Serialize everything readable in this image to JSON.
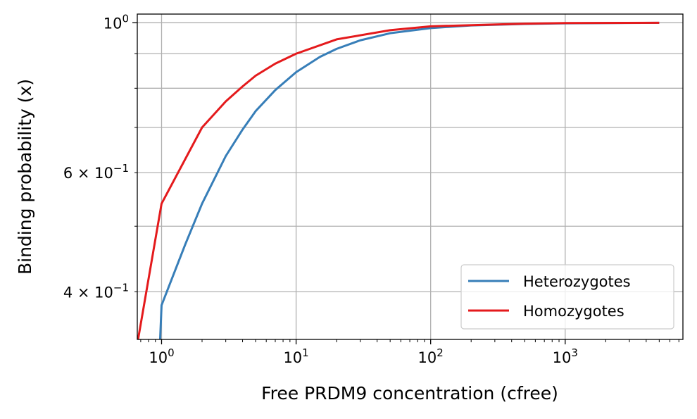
{
  "chart_data": {
    "type": "line",
    "xscale": "log",
    "yscale": "log",
    "xlabel": "Free PRDM9 concentration (cfree)",
    "ylabel": "Binding probability (x)",
    "xlim": [
      0.66,
      7500
    ],
    "ylim": [
      0.34,
      1.03
    ],
    "grid": true,
    "legend_position": "lower right",
    "x_ticks": [
      {
        "value": 1,
        "base": "10",
        "exp": "0"
      },
      {
        "value": 10,
        "base": "10",
        "exp": "1"
      },
      {
        "value": 100,
        "base": "10",
        "exp": "2"
      },
      {
        "value": 1000,
        "base": "10",
        "exp": "3"
      }
    ],
    "y_ticks": [
      {
        "value": 1.0,
        "prefix": "",
        "base": "10",
        "exp": "0"
      },
      {
        "value": 0.6,
        "prefix": "6 × ",
        "base": "10",
        "exp": "−1"
      },
      {
        "value": 0.4,
        "prefix": "4 × ",
        "base": "10",
        "exp": "−1"
      }
    ],
    "series": [
      {
        "name": "Heterozygotes",
        "color": "#377eb8",
        "points": [
          [
            0.95,
            0.3
          ],
          [
            1,
            0.382
          ],
          [
            1.5,
            0.47
          ],
          [
            2,
            0.54
          ],
          [
            3,
            0.635
          ],
          [
            4,
            0.695
          ],
          [
            5,
            0.74
          ],
          [
            7,
            0.795
          ],
          [
            10,
            0.845
          ],
          [
            15,
            0.89
          ],
          [
            20,
            0.915
          ],
          [
            30,
            0.942
          ],
          [
            50,
            0.965
          ],
          [
            100,
            0.982
          ],
          [
            200,
            0.991
          ],
          [
            500,
            0.996
          ],
          [
            1000,
            0.998
          ],
          [
            5000,
            1.0
          ]
        ]
      },
      {
        "name": "Homozygotes",
        "color": "#e41a1c",
        "points": [
          [
            0.6,
            0.3
          ],
          [
            1,
            0.54
          ],
          [
            2,
            0.7
          ],
          [
            3,
            0.765
          ],
          [
            4,
            0.805
          ],
          [
            5,
            0.835
          ],
          [
            7,
            0.87
          ],
          [
            10,
            0.9
          ],
          [
            20,
            0.945
          ],
          [
            50,
            0.975
          ],
          [
            100,
            0.988
          ],
          [
            500,
            0.997
          ],
          [
            1000,
            0.999
          ],
          [
            5000,
            1.0
          ]
        ]
      }
    ]
  }
}
